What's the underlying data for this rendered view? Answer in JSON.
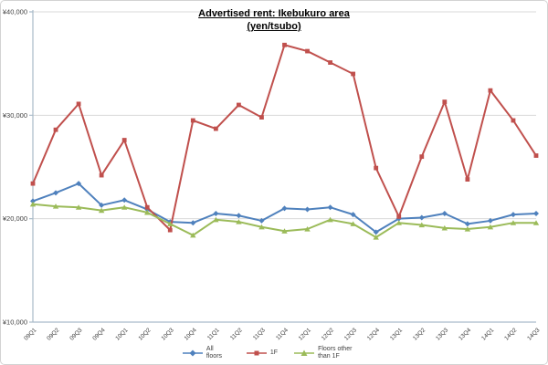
{
  "chart_data": {
    "type": "line",
    "title": "Advertised rent: Ikebukuro area",
    "subtitle": "(yen/tsubo)",
    "categories": [
      "09Q1",
      "09Q2",
      "09Q3",
      "09Q4",
      "10Q1",
      "10Q2",
      "10Q3",
      "10Q4",
      "11Q1",
      "11Q2",
      "11Q3",
      "11Q4",
      "12Q1",
      "12Q2",
      "12Q3",
      "12Q4",
      "13Q1",
      "13Q2",
      "13Q3",
      "13Q4",
      "14Q1",
      "14Q2",
      "14Q3"
    ],
    "series": [
      {
        "name": "All floors",
        "color": "#4F81BD",
        "marker": "diamond",
        "values": [
          21700,
          22500,
          23400,
          21300,
          21800,
          20900,
          19700,
          19600,
          20500,
          20300,
          19800,
          21000,
          20900,
          21100,
          20400,
          18700,
          20000,
          20100,
          20500,
          19500,
          19800,
          20400,
          20500
        ]
      },
      {
        "name": "1F",
        "color": "#C0504D",
        "marker": "square",
        "values": [
          23400,
          28600,
          31100,
          24200,
          27600,
          21100,
          18900,
          29500,
          28700,
          31000,
          29800,
          36800,
          36200,
          35100,
          34000,
          24900,
          20200,
          26000,
          31300,
          23800,
          32400,
          29500,
          26100
        ]
      },
      {
        "name": "Floors other than 1F",
        "color": "#9BBB59",
        "marker": "triangle",
        "values": [
          21400,
          21200,
          21100,
          20800,
          21100,
          20600,
          19500,
          18400,
          19900,
          19700,
          19200,
          18800,
          19000,
          19900,
          19500,
          18200,
          19600,
          19400,
          19100,
          19000,
          19200,
          19600,
          19600
        ]
      }
    ],
    "y_ticks": [
      {
        "value": 10000,
        "label": "¥10,000"
      },
      {
        "value": 20000,
        "label": "¥20,000"
      },
      {
        "value": 30000,
        "label": "¥30,000"
      },
      {
        "value": 40000,
        "label": "¥40,000"
      }
    ],
    "ylim": [
      10000,
      40000
    ],
    "xlabel": "",
    "ylabel": "",
    "grid": true,
    "legend_position": "bottom",
    "colors": {
      "gridline": "#D9D9D9",
      "axis": "#A9BBC9",
      "tick_label": "#3F3F3F",
      "background": "#FFFFFF"
    }
  }
}
